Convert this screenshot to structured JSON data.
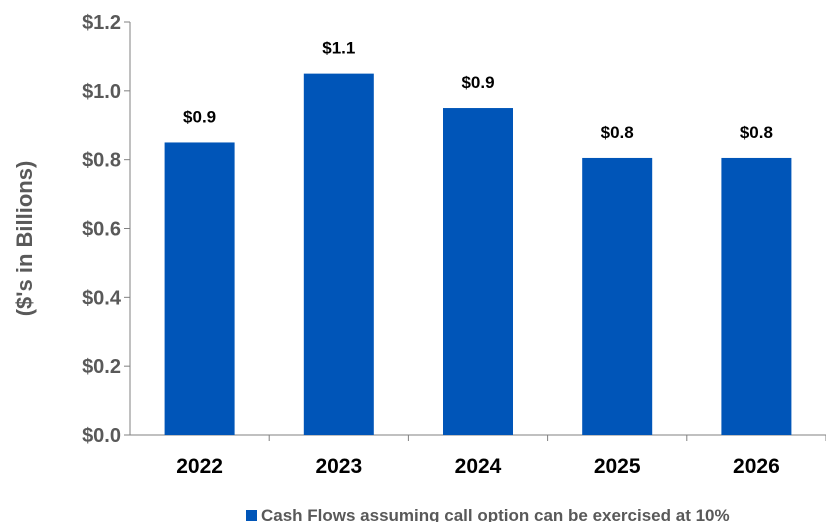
{
  "chart_data": {
    "type": "bar",
    "categories": [
      "2022",
      "2023",
      "2024",
      "2025",
      "2026"
    ],
    "series": [
      {
        "name": "Cash Flows assuming call option can be exercised at 10%",
        "values": [
          0.85,
          1.05,
          0.95,
          0.805,
          0.805
        ],
        "data_labels": [
          "$0.9",
          "$1.1",
          "$0.9",
          "$0.8",
          "$0.8"
        ],
        "color": "#0055B8"
      }
    ],
    "title": "",
    "xlabel": "",
    "ylabel": "($'s in Billions)",
    "ylim": [
      0,
      1.2
    ],
    "yticks": [
      0,
      0.2,
      0.4,
      0.6,
      0.8,
      1.0,
      1.2
    ],
    "ytick_labels": [
      "$0.0",
      "$0.2",
      "$0.4",
      "$0.6",
      "$0.8",
      "$1.0",
      "$1.2"
    ],
    "grid": false,
    "legend": "bottom-center"
  }
}
